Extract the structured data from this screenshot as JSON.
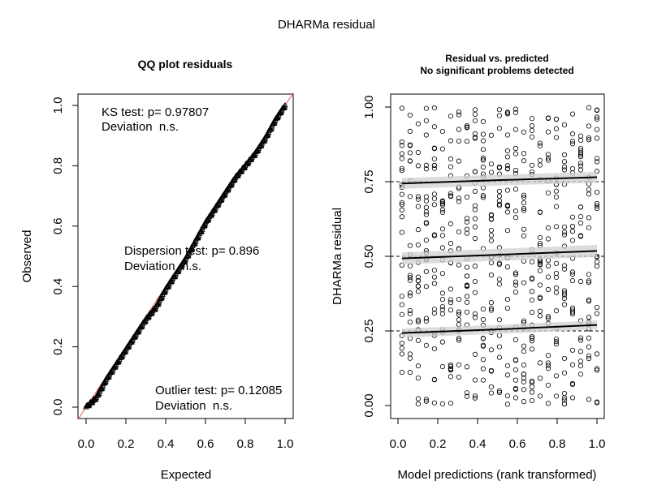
{
  "figure": {
    "title": "DHARMa residual"
  },
  "chart_data": [
    {
      "type": "scatter",
      "panel": "qq",
      "title": "QQ plot residuals",
      "xlabel": "Expected",
      "ylabel": "Observed",
      "xlim": [
        0,
        1
      ],
      "ylim": [
        0,
        1
      ],
      "x_ticks": [
        "0.0",
        "0.2",
        "0.4",
        "0.6",
        "0.8",
        "1.0"
      ],
      "y_ticks": [
        "0.0",
        "0.2",
        "0.4",
        "0.6",
        "0.8",
        "1.0"
      ],
      "reference_line": {
        "slope": 1,
        "intercept": 0,
        "color": "#e06060"
      },
      "points": {
        "color": "#000000",
        "curve": [
          [
            0.0,
            0.0
          ],
          [
            0.05,
            0.03
          ],
          [
            0.1,
            0.09
          ],
          [
            0.15,
            0.14
          ],
          [
            0.2,
            0.19
          ],
          [
            0.25,
            0.24
          ],
          [
            0.3,
            0.29
          ],
          [
            0.35,
            0.33
          ],
          [
            0.4,
            0.39
          ],
          [
            0.45,
            0.44
          ],
          [
            0.5,
            0.49
          ],
          [
            0.55,
            0.55
          ],
          [
            0.6,
            0.61
          ],
          [
            0.65,
            0.66
          ],
          [
            0.7,
            0.71
          ],
          [
            0.75,
            0.76
          ],
          [
            0.8,
            0.8
          ],
          [
            0.85,
            0.84
          ],
          [
            0.9,
            0.89
          ],
          [
            0.95,
            0.95
          ],
          [
            1.0,
            1.0
          ]
        ]
      },
      "annotations": [
        {
          "lines": [
            "KS test: p= 0.97807",
            "Deviation  n.s."
          ]
        },
        {
          "lines": [
            "Dispersion test: p= 0.896",
            "Deviation  n.s."
          ]
        },
        {
          "lines": [
            "Outlier test: p= 0.12085",
            "Deviation  n.s."
          ]
        }
      ]
    },
    {
      "type": "scatter",
      "panel": "residual-vs-predicted",
      "title": "Residual vs. predicted",
      "subtitle": "No significant problems detected",
      "xlabel": "Model predictions (rank transformed)",
      "ylabel": "DHARMa residual",
      "xlim": [
        0,
        1
      ],
      "ylim": [
        0,
        1
      ],
      "x_ticks": [
        "0.0",
        "0.2",
        "0.4",
        "0.6",
        "0.8",
        "1.0"
      ],
      "y_ticks": [
        "0.00",
        "0.25",
        "0.50",
        "0.75",
        "1.00"
      ],
      "reference_lines": [
        0.25,
        0.5,
        0.75
      ],
      "prediction_columns": 25,
      "points_per_column": 24,
      "quantile_fits": [
        {
          "quantile": 0.25,
          "x": [
            0.02,
            0.5,
            1.0
          ],
          "y": [
            0.243,
            0.255,
            0.27
          ],
          "band_halfwidth": 0.015
        },
        {
          "quantile": 0.5,
          "x": [
            0.02,
            0.5,
            1.0
          ],
          "y": [
            0.493,
            0.505,
            0.518
          ],
          "band_halfwidth": 0.02
        },
        {
          "quantile": 0.75,
          "x": [
            0.02,
            0.5,
            1.0
          ],
          "y": [
            0.744,
            0.755,
            0.765
          ],
          "band_halfwidth": 0.018
        }
      ],
      "band_color": "#d0d0d0"
    }
  ]
}
